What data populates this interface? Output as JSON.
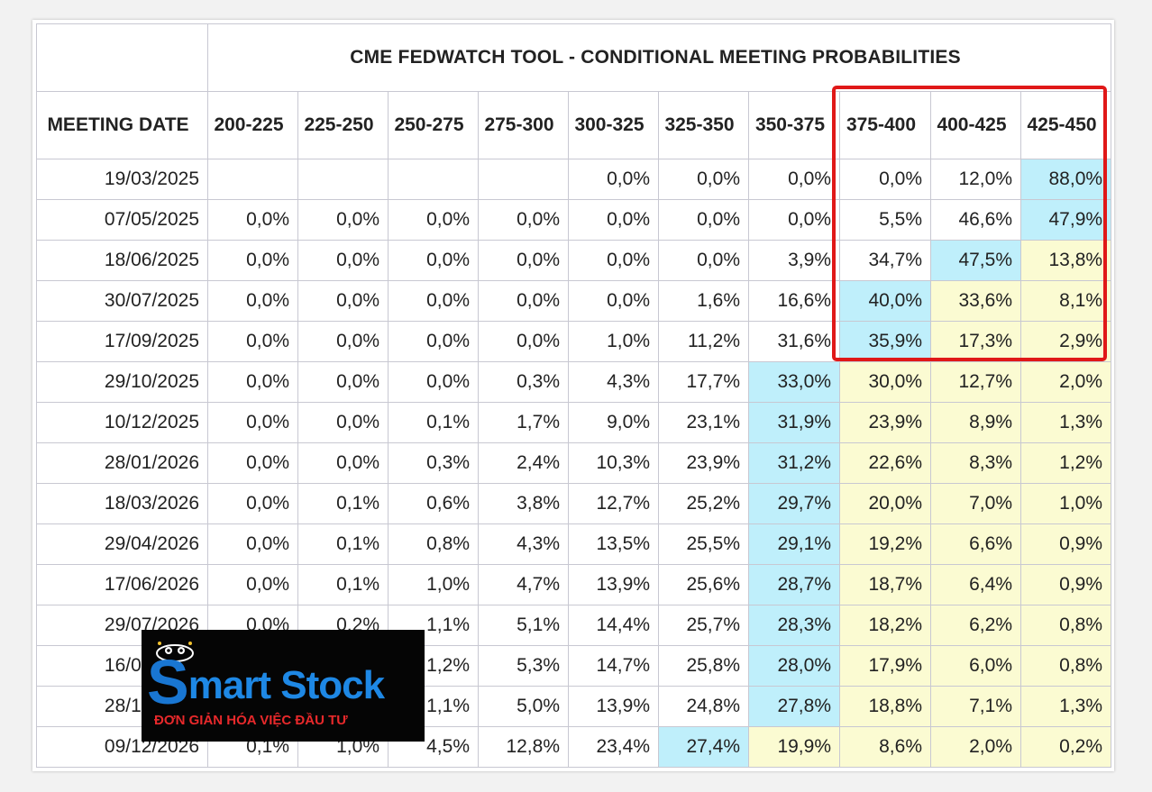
{
  "chart_data": {
    "type": "table",
    "title": "CME FEDWATCH TOOL - CONDITIONAL MEETING PROBABILITIES",
    "row_header": "MEETING DATE",
    "columns": [
      "200-225",
      "225-250",
      "250-275",
      "275-300",
      "300-325",
      "325-350",
      "350-375",
      "375-400",
      "400-425",
      "425-450"
    ],
    "rows": [
      {
        "date": "19/03/2025",
        "values": [
          "",
          "",
          "",
          "",
          "0,0%",
          "0,0%",
          "0,0%",
          "0,0%",
          "12,0%",
          "88,0%"
        ],
        "blue": 9,
        "yellow": []
      },
      {
        "date": "07/05/2025",
        "values": [
          "0,0%",
          "0,0%",
          "0,0%",
          "0,0%",
          "0,0%",
          "0,0%",
          "0,0%",
          "5,5%",
          "46,6%",
          "47,9%"
        ],
        "blue": 9,
        "yellow": []
      },
      {
        "date": "18/06/2025",
        "values": [
          "0,0%",
          "0,0%",
          "0,0%",
          "0,0%",
          "0,0%",
          "0,0%",
          "3,9%",
          "34,7%",
          "47,5%",
          "13,8%"
        ],
        "blue": 8,
        "yellow": [
          9
        ]
      },
      {
        "date": "30/07/2025",
        "values": [
          "0,0%",
          "0,0%",
          "0,0%",
          "0,0%",
          "0,0%",
          "1,6%",
          "16,6%",
          "40,0%",
          "33,6%",
          "8,1%"
        ],
        "blue": 7,
        "yellow": [
          8,
          9
        ]
      },
      {
        "date": "17/09/2025",
        "values": [
          "0,0%",
          "0,0%",
          "0,0%",
          "0,0%",
          "1,0%",
          "11,2%",
          "31,6%",
          "35,9%",
          "17,3%",
          "2,9%"
        ],
        "blue": 7,
        "yellow": [
          8,
          9
        ]
      },
      {
        "date": "29/10/2025",
        "values": [
          "0,0%",
          "0,0%",
          "0,0%",
          "0,3%",
          "4,3%",
          "17,7%",
          "33,0%",
          "30,0%",
          "12,7%",
          "2,0%"
        ],
        "blue": 6,
        "yellow": [
          7,
          8,
          9
        ]
      },
      {
        "date": "10/12/2025",
        "values": [
          "0,0%",
          "0,0%",
          "0,1%",
          "1,7%",
          "9,0%",
          "23,1%",
          "31,9%",
          "23,9%",
          "8,9%",
          "1,3%"
        ],
        "blue": 6,
        "yellow": [
          7,
          8,
          9
        ]
      },
      {
        "date": "28/01/2026",
        "values": [
          "0,0%",
          "0,0%",
          "0,3%",
          "2,4%",
          "10,3%",
          "23,9%",
          "31,2%",
          "22,6%",
          "8,3%",
          "1,2%"
        ],
        "blue": 6,
        "yellow": [
          7,
          8,
          9
        ]
      },
      {
        "date": "18/03/2026",
        "values": [
          "0,0%",
          "0,1%",
          "0,6%",
          "3,8%",
          "12,7%",
          "25,2%",
          "29,7%",
          "20,0%",
          "7,0%",
          "1,0%"
        ],
        "blue": 6,
        "yellow": [
          7,
          8,
          9
        ]
      },
      {
        "date": "29/04/2026",
        "values": [
          "0,0%",
          "0,1%",
          "0,8%",
          "4,3%",
          "13,5%",
          "25,5%",
          "29,1%",
          "19,2%",
          "6,6%",
          "0,9%"
        ],
        "blue": 6,
        "yellow": [
          7,
          8,
          9
        ]
      },
      {
        "date": "17/06/2026",
        "values": [
          "0,0%",
          "0,1%",
          "1,0%",
          "4,7%",
          "13,9%",
          "25,6%",
          "28,7%",
          "18,7%",
          "6,4%",
          "0,9%"
        ],
        "blue": 6,
        "yellow": [
          7,
          8,
          9
        ]
      },
      {
        "date": "29/07/2026",
        "values": [
          "0,0%",
          "0,2%",
          "1,1%",
          "5,1%",
          "14,4%",
          "25,7%",
          "28,3%",
          "18,2%",
          "6,2%",
          "0,8%"
        ],
        "blue": 6,
        "yellow": [
          7,
          8,
          9
        ]
      },
      {
        "date": "16/09/2026",
        "values": [
          "",
          "",
          "1,2%",
          "5,3%",
          "14,7%",
          "25,8%",
          "28,0%",
          "17,9%",
          "6,0%",
          "0,8%"
        ],
        "blue": 6,
        "yellow": [
          7,
          8,
          9
        ]
      },
      {
        "date": "28/10/2026",
        "values": [
          "",
          "",
          "1,1%",
          "5,0%",
          "13,9%",
          "24,8%",
          "27,8%",
          "18,8%",
          "7,1%",
          "1,3%"
        ],
        "blue": 6,
        "yellow": [
          7,
          8,
          9
        ]
      },
      {
        "date": "09/12/2026",
        "values": [
          "0,1%",
          "1,0%",
          "4,5%",
          "12,8%",
          "23,4%",
          "27,4%",
          "19,9%",
          "8,6%",
          "2,0%",
          "0,2%"
        ],
        "blue": 5,
        "yellow": [
          6,
          7,
          8,
          9
        ]
      }
    ]
  },
  "colors": {
    "highlight_max": "#bfeffb",
    "highlight_above": "#fbfbd2",
    "annotation_box": "#e01818"
  },
  "watermark": {
    "brand": "Smart Stock",
    "tagline": "ĐƠN GIẢN HÓA VIỆC ĐẦU TƯ"
  }
}
